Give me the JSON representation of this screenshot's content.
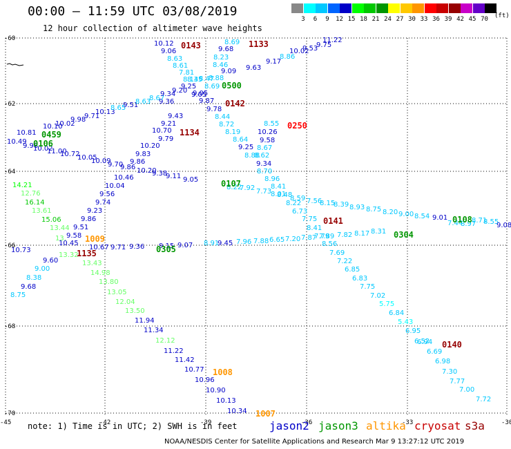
{
  "header": {
    "title": "00:00 – 11:59 UTC 03/08/2019",
    "subtitle": "12 hour collection of altimeter wave heights"
  },
  "scale": {
    "colors": [
      "#888888",
      "#00ffff",
      "#00c8ff",
      "#0064ff",
      "#0000c8",
      "#00ff00",
      "#00c800",
      "#009600",
      "#ffff00",
      "#ffc800",
      "#ff9600",
      "#ff0000",
      "#c80000",
      "#960000",
      "#c800c8",
      "#6400c8",
      "#000000"
    ],
    "labels": [
      "3",
      "6",
      "9",
      "12",
      "15",
      "18",
      "21",
      "24",
      "27",
      "30",
      "33",
      "36",
      "39",
      "42",
      "45",
      "70"
    ],
    "unit": "(ft)"
  },
  "axes": {
    "lat_labels": [
      "-60",
      "-62",
      "-64",
      "-66",
      "-68",
      "-70"
    ],
    "lon_labels": [
      "-45",
      "-42",
      "-39",
      "-36",
      "-33",
      "-30"
    ]
  },
  "tracks": [
    {
      "items": [
        [
          "9.05",
          "#0000c8"
        ],
        [
          "9.11",
          "#0000c8"
        ],
        [
          "9.38",
          "#0000c8"
        ],
        [
          "10.20",
          "#0000c8"
        ],
        [
          "10.46",
          "#0000c8"
        ],
        [
          "10.04",
          "#0000c8"
        ],
        [
          "9.56",
          "#0000c8"
        ],
        [
          "9.74",
          "#0000c8"
        ],
        [
          "9.23",
          "#0000c8"
        ],
        [
          "9.86",
          "#0000c8"
        ],
        [
          "9.51",
          "#0000c8"
        ],
        [
          "9.58",
          "#0000c8"
        ],
        [
          "9.60",
          "#0000c8"
        ],
        [
          "9.00",
          "#00c8ff"
        ],
        [
          "8.38",
          "#00c8ff"
        ],
        [
          "9.68",
          "#0000c8"
        ],
        [
          "8.75",
          "#00c8ff"
        ]
      ]
    },
    {
      "items": [
        [
          "10.12",
          "#0000c8"
        ],
        [
          "9.06",
          "#0000c8"
        ],
        [
          "8.63",
          "#00c8ff"
        ],
        [
          "8.61",
          "#00c8ff"
        ],
        [
          "7.81",
          "#00c8ff"
        ],
        [
          "8.14",
          "#00c8ff"
        ],
        [
          "9.36",
          "#0000c8"
        ],
        [
          "9.43",
          "#0000c8"
        ],
        [
          "9.21",
          "#0000c8"
        ],
        [
          "10.70",
          "#0000c8"
        ],
        [
          "9.79",
          "#0000c8"
        ],
        [
          "10.20",
          "#0000c8"
        ],
        [
          "9.83",
          "#0000c8"
        ],
        [
          "9.86",
          "#0000c8"
        ]
      ]
    },
    {
      "items": [
        [
          "10.81",
          "#0000c8"
        ],
        [
          "10.10",
          "#0000c8"
        ],
        [
          "10.02",
          "#0000c8"
        ],
        [
          "9.98",
          "#0000c8"
        ],
        [
          "9.71",
          "#0000c8"
        ],
        [
          "10.13",
          "#0000c8"
        ],
        [
          "8.65",
          "#00c8ff"
        ],
        [
          "9.51",
          "#0000c8"
        ],
        [
          "8.63",
          "#00c8ff"
        ],
        [
          "8.67",
          "#00c8ff"
        ],
        [
          "9.34",
          "#0000c8"
        ],
        [
          "9.20",
          "#0000c8"
        ],
        [
          "9.25",
          "#0000c8"
        ],
        [
          "9.05",
          "#0000c8"
        ],
        [
          "8.69",
          "#00c8ff"
        ],
        [
          "8.88",
          "#00c8ff"
        ],
        [
          "9.09",
          "#0000c8"
        ],
        [
          "9.63",
          "#0000c8"
        ],
        [
          "9.17",
          "#0000c8"
        ],
        [
          "8.86",
          "#00c8ff"
        ],
        [
          "10.02",
          "#0000c8"
        ],
        [
          "9.53",
          "#0000c8"
        ],
        [
          "9.75",
          "#0000c8"
        ],
        [
          "11.22",
          "#0000c8"
        ]
      ]
    },
    {
      "items": [
        [
          "10.49",
          "#0000c8"
        ],
        [
          "9.98",
          "#0000c8"
        ],
        [
          "10.02",
          "#0000c8"
        ],
        [
          "11.00",
          "#0000c8"
        ],
        [
          "10.72",
          "#0000c8"
        ],
        [
          "10.05",
          "#0000c8"
        ],
        [
          "10.09",
          "#0000c8"
        ],
        [
          "9.70",
          "#0000c8"
        ],
        [
          "9.86",
          "#0000c8"
        ]
      ]
    },
    {
      "items": [
        [
          "8.69",
          "#00c8ff"
        ],
        [
          "9.68",
          "#0000c8"
        ],
        [
          "8.23",
          "#00c8ff"
        ],
        [
          "8.46",
          "#00c8ff"
        ],
        [
          "8.47",
          "#00c8ff"
        ],
        [
          "8.35",
          "#00c8ff"
        ],
        [
          "9.05",
          "#0000c8"
        ],
        [
          "9.87",
          "#0000c8"
        ],
        [
          "9.78",
          "#0000c8"
        ],
        [
          "8.44",
          "#00c8ff"
        ],
        [
          "8.72",
          "#00c8ff"
        ],
        [
          "8.19",
          "#00c8ff"
        ],
        [
          "8.64",
          "#00c8ff"
        ],
        [
          "9.25",
          "#0000c8"
        ],
        [
          "8.88",
          "#00c8ff"
        ],
        [
          "8.62",
          "#00c8ff"
        ],
        [
          "9.34",
          "#0000c8"
        ],
        [
          "8.70",
          "#00c8ff"
        ],
        [
          "8.96",
          "#00c8ff"
        ],
        [
          "8.41",
          "#00c8ff"
        ],
        [
          "8.48",
          "#00c8ff"
        ],
        [
          "8.22",
          "#00c8ff"
        ],
        [
          "6.73",
          "#00c8ff"
        ],
        [
          "7.75",
          "#00c8ff"
        ],
        [
          "8.41",
          "#00c8ff"
        ],
        [
          "7.79",
          "#00c8ff"
        ],
        [
          "8.56",
          "#00c8ff"
        ],
        [
          "7.69",
          "#00c8ff"
        ],
        [
          "7.22",
          "#00c8ff"
        ],
        [
          "6.85",
          "#00c8ff"
        ],
        [
          "6.83",
          "#00c8ff"
        ],
        [
          "7.75",
          "#00c8ff"
        ],
        [
          "7.02",
          "#00c8ff"
        ],
        [
          "5.75",
          "#00ffff"
        ],
        [
          "6.84",
          "#00c8ff"
        ],
        [
          "5.43",
          "#00ffff"
        ],
        [
          "6.95",
          "#00c8ff"
        ],
        [
          "6.52",
          "#00c8ff"
        ],
        [
          "6.94",
          "#00c8ff"
        ],
        [
          "6.69",
          "#00c8ff"
        ],
        [
          "6.98",
          "#00c8ff"
        ],
        [
          "7.30",
          "#00c8ff"
        ],
        [
          "7.77",
          "#00c8ff"
        ],
        [
          "7.00",
          "#00c8ff"
        ],
        [
          "7.72",
          "#00c8ff"
        ]
      ]
    },
    {
      "items": [
        [
          "8.55",
          "#00c8ff"
        ],
        [
          "10.26",
          "#0000c8"
        ],
        [
          "9.58",
          "#0000c8"
        ],
        [
          "8.67",
          "#00c8ff"
        ]
      ]
    },
    {
      "items": [
        [
          "8.22",
          "#00c8ff"
        ],
        [
          "7.92",
          "#00c8ff"
        ],
        [
          "7.73",
          "#00c8ff"
        ],
        [
          "8.01",
          "#00c8ff"
        ],
        [
          "8.59",
          "#00c8ff"
        ],
        [
          "7.56",
          "#00c8ff"
        ],
        [
          "8.15",
          "#00c8ff"
        ],
        [
          "8.39",
          "#00c8ff"
        ],
        [
          "8.93",
          "#00c8ff"
        ],
        [
          "8.75",
          "#00c8ff"
        ],
        [
          "8.20",
          "#00c8ff"
        ],
        [
          "9.00",
          "#00c8ff"
        ],
        [
          "8.54",
          "#00c8ff"
        ],
        [
          "9.01",
          "#0000c8"
        ],
        [
          "7.44",
          "#00c8ff"
        ],
        [
          "8.97",
          "#00c8ff"
        ],
        [
          "8.71",
          "#00c8ff"
        ],
        [
          "8.55",
          "#00c8ff"
        ],
        [
          "9.08",
          "#0000c8"
        ]
      ]
    },
    {
      "items": [
        [
          "10.73",
          "#0000c8"
        ],
        [
          "10.67",
          "#0000c8"
        ],
        [
          "9.71",
          "#0000c8"
        ],
        [
          "9.36",
          "#0000c8"
        ],
        [
          "9.15",
          "#0000c8"
        ],
        [
          "9.07",
          "#0000c8"
        ],
        [
          "8.91",
          "#00c8ff"
        ],
        [
          "9.45",
          "#0000c8"
        ],
        [
          "7.96",
          "#00c8ff"
        ],
        [
          "7.88",
          "#00c8ff"
        ],
        [
          "6.65",
          "#00c8ff"
        ],
        [
          "7.20",
          "#00c8ff"
        ],
        [
          "7.87",
          "#00c8ff"
        ],
        [
          "7.89",
          "#00c8ff"
        ],
        [
          "7.82",
          "#00c8ff"
        ],
        [
          "8.17",
          "#00c8ff"
        ],
        [
          "8.31",
          "#00c8ff"
        ]
      ]
    },
    {
      "items": [
        [
          "14.21",
          "#00ff00"
        ],
        [
          "12.76",
          "#66ff66"
        ],
        [
          "16.14",
          "#00c800"
        ],
        [
          "13.61",
          "#66ff66"
        ],
        [
          "15.06",
          "#00c800"
        ],
        [
          "13.44",
          "#66ff66"
        ],
        [
          "13.",
          "#66ff66"
        ],
        [
          "10.45",
          "#0000c8"
        ],
        [
          "13.32",
          "#66ff66"
        ],
        [
          "13.43",
          "#66ff66"
        ],
        [
          "14.98",
          "#66ff66"
        ],
        [
          "13.80",
          "#66ff66"
        ],
        [
          "13.05",
          "#66ff66"
        ],
        [
          "12.04",
          "#66ff66"
        ],
        [
          "13.50",
          "#66ff66"
        ],
        [
          "12.12",
          "#66ff66"
        ]
      ]
    },
    {
      "items": [
        [
          "11.94",
          "#0000c8"
        ],
        [
          "11.34",
          "#0000c8"
        ],
        [
          "11.22",
          "#0000c8"
        ],
        [
          "11.42",
          "#0000c8"
        ],
        [
          "10.77",
          "#0000c8"
        ],
        [
          "10.96",
          "#0000c8"
        ],
        [
          "10.90",
          "#0000c8"
        ],
        [
          "10.13",
          "#0000c8"
        ],
        [
          "10.34",
          "#0000c8"
        ]
      ]
    }
  ],
  "time_tags": [
    {
      "text": "0143",
      "color": "#960000"
    },
    {
      "text": "1133",
      "color": "#960000"
    },
    {
      "text": "0500",
      "color": "#009600"
    },
    {
      "text": "0142",
      "color": "#960000"
    },
    {
      "text": "0250",
      "color": "#ff0000"
    },
    {
      "text": "1134",
      "color": "#960000"
    },
    {
      "text": "0106",
      "color": "#009600"
    },
    {
      "text": "0459",
      "color": "#009600"
    },
    {
      "text": "0107",
      "color": "#009600"
    },
    {
      "text": "0141",
      "color": "#960000"
    },
    {
      "text": "0108",
      "color": "#009600"
    },
    {
      "text": "0304",
      "color": "#009600"
    },
    {
      "text": "1009",
      "color": "#ff9600"
    },
    {
      "text": "1135",
      "color": "#960000"
    },
    {
      "text": "0305",
      "color": "#009600"
    },
    {
      "text": "0140",
      "color": "#960000"
    },
    {
      "text": "1008",
      "color": "#ff9600"
    },
    {
      "text": "1007",
      "color": "#ff9600"
    }
  ],
  "footer": {
    "note": "note: 1) Time is in UTC; 2) SWH is in feet",
    "legend": [
      {
        "label": "jason2",
        "color": "#0000c8"
      },
      {
        "label": "jason3",
        "color": "#009600"
      },
      {
        "label": "altika",
        "color": "#ff9600"
      },
      {
        "label": "cryosat",
        "color": "#c80000"
      },
      {
        "label": "s3a",
        "color": "#960000"
      }
    ],
    "credit": "NOAA/NESDIS Center for Satellite Applications and Research   Mar  9 13:27:12 UTC 2019"
  }
}
